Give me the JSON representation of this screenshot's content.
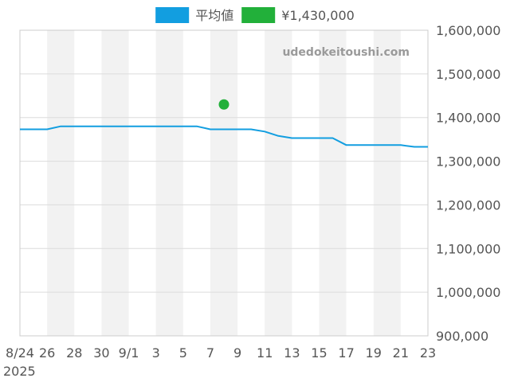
{
  "chart_data": {
    "type": "line",
    "x_tick_labels": [
      "8/24",
      "26",
      "28",
      "30",
      "9/1",
      "3",
      "5",
      "7",
      "9",
      "11",
      "13",
      "15",
      "17",
      "19",
      "21",
      "23"
    ],
    "x_year_label": "2025",
    "dates": [
      "2025-08-24",
      "2025-08-25",
      "2025-08-26",
      "2025-08-27",
      "2025-08-28",
      "2025-08-29",
      "2025-08-30",
      "2025-08-31",
      "2025-09-01",
      "2025-09-02",
      "2025-09-03",
      "2025-09-04",
      "2025-09-05",
      "2025-09-06",
      "2025-09-07",
      "2025-09-08",
      "2025-09-09",
      "2025-09-10",
      "2025-09-11",
      "2025-09-12",
      "2025-09-13",
      "2025-09-14",
      "2025-09-15",
      "2025-09-16",
      "2025-09-17",
      "2025-09-18",
      "2025-09-19",
      "2025-09-20",
      "2025-09-21",
      "2025-09-22",
      "2025-09-23"
    ],
    "y_tick_labels": [
      "1,600,000",
      "1,500,000",
      "1,400,000",
      "1,300,000",
      "1,200,000",
      "1,100,000",
      "1,000,000",
      "900,000"
    ],
    "ylim": [
      900000,
      1600000
    ],
    "y_axis_position": "right",
    "grid": true,
    "legend_position": "top-center",
    "series": [
      {
        "name": "平均値",
        "type": "line",
        "color": "#129ee0",
        "values": [
          1373000,
          1373000,
          1373000,
          1380000,
          1380000,
          1380000,
          1380000,
          1380000,
          1380000,
          1380000,
          1380000,
          1380000,
          1380000,
          1380000,
          1373000,
          1373000,
          1373000,
          1373000,
          1368000,
          1358000,
          1353000,
          1353000,
          1353000,
          1353000,
          1337000,
          1337000,
          1337000,
          1337000,
          1337000,
          1333000,
          1333000
        ]
      },
      {
        "name": "¥1,430,000",
        "type": "point",
        "color": "#22b03a",
        "points": [
          {
            "x": "2025-09-08",
            "y": 1430000
          }
        ]
      }
    ],
    "watermark": "udedokeitoushi.com",
    "colors": {
      "band": "#f2f2f2",
      "grid": "#dcdcdc",
      "axis": "#cccccc",
      "tick_text": "#555555",
      "watermark": "#9a9a9a"
    }
  }
}
